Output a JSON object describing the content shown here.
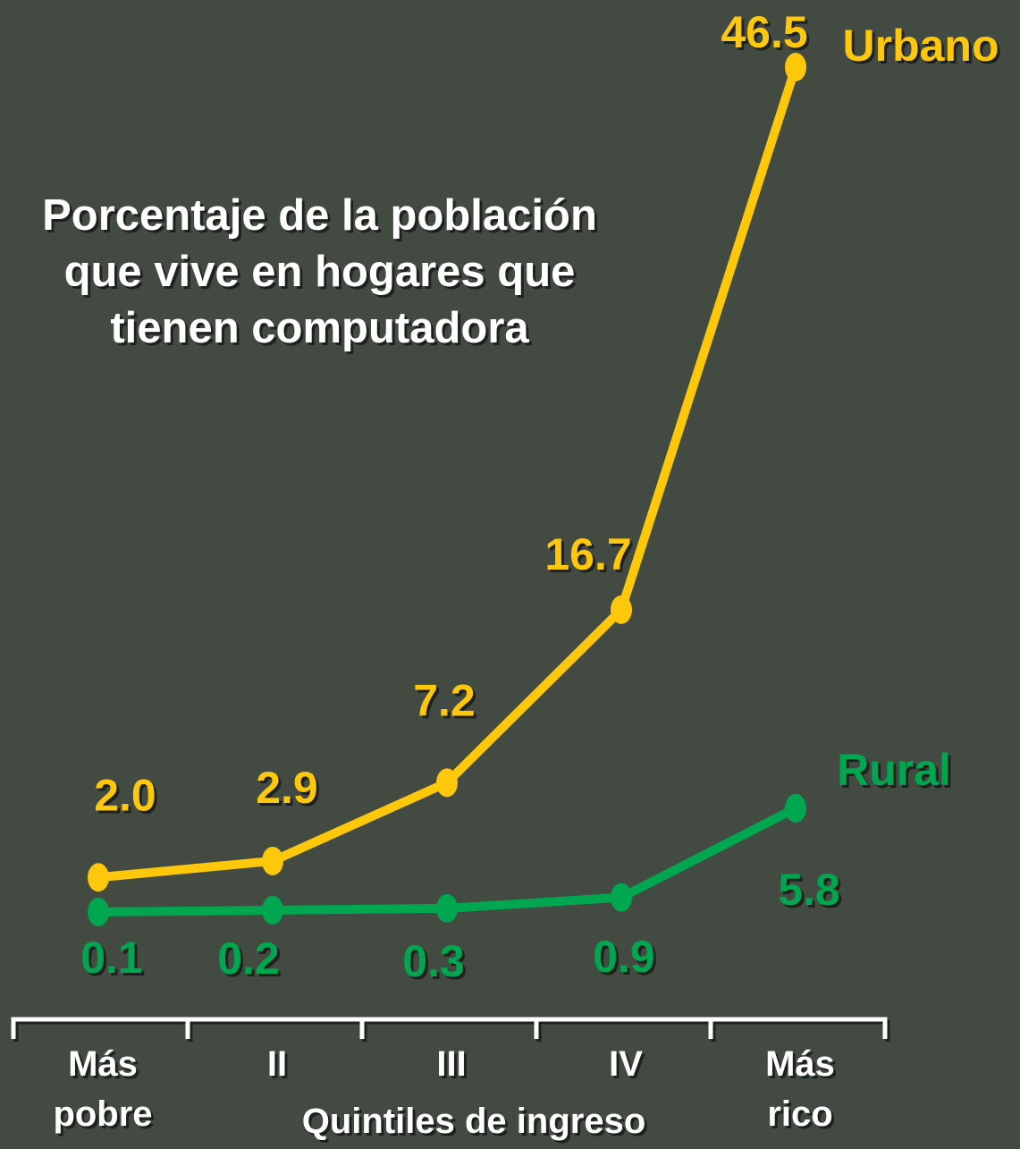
{
  "chart_data": {
    "type": "line",
    "title": "Porcentaje de la población que vive en hogares que tienen computadora",
    "x_label": "Quintiles de ingreso",
    "categories": [
      "Más pobre",
      "II",
      "III",
      "IV",
      "Más rico"
    ],
    "series": [
      {
        "name": "Urbano",
        "color": "#fdc70c",
        "values": [
          2.0,
          2.9,
          7.2,
          16.7,
          46.5
        ],
        "value_labels": [
          "2.0",
          "2.9",
          "7.2",
          "16.7",
          "46.5"
        ]
      },
      {
        "name": "Rural",
        "color": "#00a650",
        "values": [
          0.1,
          0.2,
          0.3,
          0.9,
          5.8
        ],
        "value_labels": [
          "0.1",
          "0.2",
          "0.3",
          "0.9",
          "5.8"
        ]
      }
    ]
  }
}
